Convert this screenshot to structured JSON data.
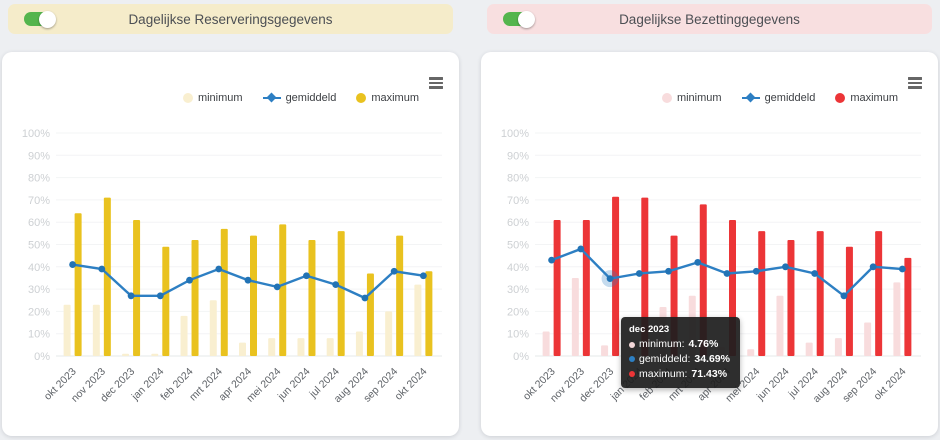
{
  "page": {
    "background": "#edeff2"
  },
  "panels": [
    {
      "title": "Dagelijkse Reserveringsgegevens",
      "header_bg": "#f5ecca",
      "toggle": {
        "on": true,
        "color": "#54b54d"
      },
      "menu_icon": "hamburger-menu-icon",
      "legend": [
        {
          "label": "minimum",
          "kind": "bar",
          "color": "#f9efd0"
        },
        {
          "label": "gemiddeld",
          "kind": "line",
          "color": "#2d7fc3"
        },
        {
          "label": "maximum",
          "kind": "bar",
          "color": "#e9c21f"
        }
      ]
    },
    {
      "title": "Dagelijkse Bezettinggegevens",
      "header_bg": "#f8dfe0",
      "toggle": {
        "on": true,
        "color": "#54b54d"
      },
      "menu_icon": "hamburger-menu-icon",
      "legend": [
        {
          "label": "minimum",
          "kind": "bar",
          "color": "#f8dcdd"
        },
        {
          "label": "gemiddeld",
          "kind": "line",
          "color": "#2d7fc3"
        },
        {
          "label": "maximum",
          "kind": "bar",
          "color": "#ec3537"
        }
      ],
      "tooltip": {
        "title": "dec 2023",
        "rows": [
          {
            "label": "minimum",
            "value": "4.76%",
            "color": "#f3d7d8"
          },
          {
            "label": "gemiddeld",
            "value": "34.69%",
            "color": "#2d7fc3"
          },
          {
            "label": "maximum",
            "value": "71.43%",
            "color": "#ec3537"
          }
        ]
      }
    }
  ],
  "chart_data": [
    {
      "type": "bar",
      "title": "Dagelijkse Reserveringsgegevens",
      "categories": [
        "okt 2023",
        "nov 2023",
        "dec 2023",
        "jan 2024",
        "feb 2024",
        "mrt 2024",
        "apr 2024",
        "mei 2024",
        "jun 2024",
        "jul 2024",
        "aug 2024",
        "sep 2024",
        "okt 2024"
      ],
      "series": [
        {
          "name": "minimum",
          "type": "bar",
          "color": "#f9efd0",
          "values": [
            23,
            23,
            1,
            1,
            18,
            25,
            6,
            8,
            8,
            8,
            11,
            20,
            32
          ]
        },
        {
          "name": "gemiddeld",
          "type": "line",
          "color": "#2d7fc3",
          "marker_color": "#2273b5",
          "values": [
            41,
            39,
            27,
            27,
            34,
            39,
            34,
            31,
            36,
            32,
            26,
            38,
            36
          ]
        },
        {
          "name": "maximum",
          "type": "bar",
          "color": "#e9c21f",
          "values": [
            64,
            71,
            61,
            49,
            52,
            57,
            54,
            59,
            52,
            56,
            37,
            54,
            38
          ]
        }
      ],
      "ylim": [
        0,
        100
      ],
      "ytick_labels": [
        "0%",
        "10%",
        "20%",
        "30%",
        "40%",
        "50%",
        "60%",
        "70%",
        "80%",
        "90%",
        "100%"
      ],
      "grid": true,
      "legend_position": "top-right"
    },
    {
      "type": "bar",
      "title": "Dagelijkse Bezettinggegevens",
      "categories": [
        "okt 2023",
        "nov 2023",
        "dec 2023",
        "jan 2024",
        "feb 2024",
        "mrt 2024",
        "apr 2024",
        "mei 2024",
        "jun 2024",
        "jul 2024",
        "aug 2024",
        "sep 2024",
        "okt 2024"
      ],
      "series": [
        {
          "name": "minimum",
          "type": "bar",
          "color": "#f8dcdd",
          "values": [
            11,
            35,
            4.76,
            5,
            22,
            27,
            4,
            3,
            27,
            6,
            8,
            15,
            33
          ]
        },
        {
          "name": "gemiddeld",
          "type": "line",
          "color": "#2d7fc3",
          "marker_color": "#2273b5",
          "values": [
            43,
            48,
            34.69,
            37,
            38,
            42,
            37,
            38,
            40,
            37,
            27,
            40,
            39
          ]
        },
        {
          "name": "maximum",
          "type": "bar",
          "color": "#ec3537",
          "values": [
            61,
            61,
            71.43,
            71,
            54,
            68,
            61,
            56,
            52,
            56,
            49,
            56,
            44
          ]
        }
      ],
      "ylim": [
        0,
        100
      ],
      "ytick_labels": [
        "0%",
        "10%",
        "20%",
        "30%",
        "40%",
        "50%",
        "60%",
        "70%",
        "80%",
        "90%",
        "100%"
      ],
      "grid": true,
      "legend_position": "top-right",
      "highlight": {
        "series": "gemiddeld",
        "index": 2
      }
    }
  ]
}
